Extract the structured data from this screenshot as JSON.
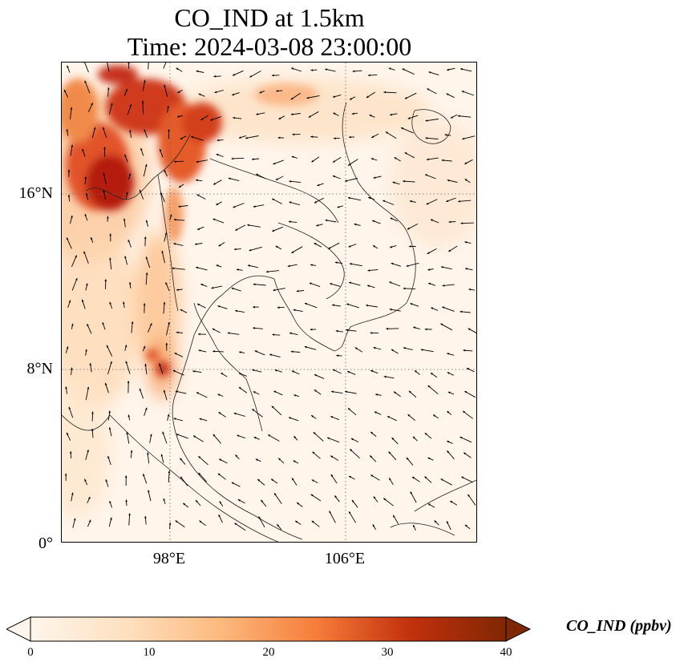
{
  "title": {
    "line1": "CO_IND at 1.5km",
    "line2": "Time: 2024-03-08 23:00:00"
  },
  "map": {
    "variable": "CO_IND",
    "level": "1.5km",
    "time": "2024-03-08 23:00:00",
    "colormap": [
      "#fff5eb",
      "#fdd9b4",
      "#fdae6b",
      "#f16913",
      "#d94801",
      "#a63603",
      "#7f2704"
    ],
    "overlay": "wind vectors",
    "gridlines": "dotted",
    "lat_ticks": [
      "16°N",
      "8°N",
      "0°"
    ],
    "lon_ticks": [
      "98°E",
      "106°E"
    ]
  },
  "colorbar": {
    "label": "CO_IND (ppbv)",
    "ticks": [
      "0",
      "10",
      "20",
      "30",
      "40"
    ],
    "min": 0,
    "max": 40,
    "extend": "both"
  }
}
